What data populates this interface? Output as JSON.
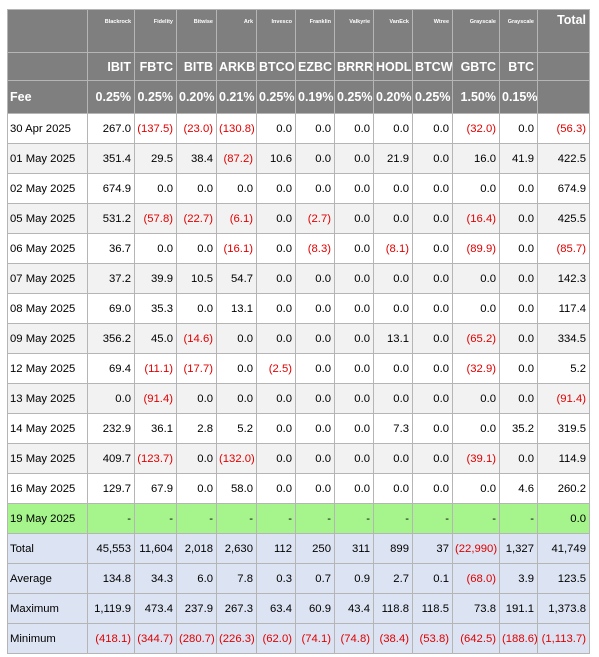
{
  "columns": [
    {
      "issuer": "Blackrock",
      "ticker": "IBIT",
      "fee": "0.25%"
    },
    {
      "issuer": "Fidelity",
      "ticker": "FBTC",
      "fee": "0.25%"
    },
    {
      "issuer": "Bitwise",
      "ticker": "BITB",
      "fee": "0.20%"
    },
    {
      "issuer": "Ark",
      "ticker": "ARKB",
      "fee": "0.21%"
    },
    {
      "issuer": "Invesco",
      "ticker": "BTCO",
      "fee": "0.25%"
    },
    {
      "issuer": "Franklin",
      "ticker": "EZBC",
      "fee": "0.19%"
    },
    {
      "issuer": "Valkyrie",
      "ticker": "BRRR",
      "fee": "0.25%"
    },
    {
      "issuer": "VanEck",
      "ticker": "HODL",
      "fee": "0.20%"
    },
    {
      "issuer": "Wtree",
      "ticker": "BTCW",
      "fee": "0.25%"
    },
    {
      "issuer": "Grayscale",
      "ticker": "GBTC",
      "fee": "1.50%"
    },
    {
      "issuer": "Grayscale",
      "ticker": "BTC",
      "fee": "0.15%"
    }
  ],
  "total_header": "Total",
  "fee_label": "Fee",
  "rows": [
    {
      "label": "30 Apr 2025",
      "values": [
        "267.0",
        "(137.5)",
        "(23.0)",
        "(130.8)",
        "0.0",
        "0.0",
        "0.0",
        "0.0",
        "0.0",
        "(32.0)",
        "0.0"
      ],
      "total": "(56.3)"
    },
    {
      "label": "01 May 2025",
      "values": [
        "351.4",
        "29.5",
        "38.4",
        "(87.2)",
        "10.6",
        "0.0",
        "0.0",
        "21.9",
        "0.0",
        "16.0",
        "41.9"
      ],
      "total": "422.5"
    },
    {
      "label": "02 May 2025",
      "values": [
        "674.9",
        "0.0",
        "0.0",
        "0.0",
        "0.0",
        "0.0",
        "0.0",
        "0.0",
        "0.0",
        "0.0",
        "0.0"
      ],
      "total": "674.9"
    },
    {
      "label": "05 May 2025",
      "values": [
        "531.2",
        "(57.8)",
        "(22.7)",
        "(6.1)",
        "0.0",
        "(2.7)",
        "0.0",
        "0.0",
        "0.0",
        "(16.4)",
        "0.0"
      ],
      "total": "425.5"
    },
    {
      "label": "06 May 2025",
      "values": [
        "36.7",
        "0.0",
        "0.0",
        "(16.1)",
        "0.0",
        "(8.3)",
        "0.0",
        "(8.1)",
        "0.0",
        "(89.9)",
        "0.0"
      ],
      "total": "(85.7)"
    },
    {
      "label": "07 May 2025",
      "values": [
        "37.2",
        "39.9",
        "10.5",
        "54.7",
        "0.0",
        "0.0",
        "0.0",
        "0.0",
        "0.0",
        "0.0",
        "0.0"
      ],
      "total": "142.3"
    },
    {
      "label": "08 May 2025",
      "values": [
        "69.0",
        "35.3",
        "0.0",
        "13.1",
        "0.0",
        "0.0",
        "0.0",
        "0.0",
        "0.0",
        "0.0",
        "0.0"
      ],
      "total": "117.4"
    },
    {
      "label": "09 May 2025",
      "values": [
        "356.2",
        "45.0",
        "(14.6)",
        "0.0",
        "0.0",
        "0.0",
        "0.0",
        "13.1",
        "0.0",
        "(65.2)",
        "0.0"
      ],
      "total": "334.5"
    },
    {
      "label": "12 May 2025",
      "values": [
        "69.4",
        "(11.1)",
        "(17.7)",
        "0.0",
        "(2.5)",
        "0.0",
        "0.0",
        "0.0",
        "0.0",
        "(32.9)",
        "0.0"
      ],
      "total": "5.2"
    },
    {
      "label": "13 May 2025",
      "values": [
        "0.0",
        "(91.4)",
        "0.0",
        "0.0",
        "0.0",
        "0.0",
        "0.0",
        "0.0",
        "0.0",
        "0.0",
        "0.0"
      ],
      "total": "(91.4)"
    },
    {
      "label": "14 May 2025",
      "values": [
        "232.9",
        "36.1",
        "2.8",
        "5.2",
        "0.0",
        "0.0",
        "0.0",
        "7.3",
        "0.0",
        "0.0",
        "35.2"
      ],
      "total": "319.5"
    },
    {
      "label": "15 May 2025",
      "values": [
        "409.7",
        "(123.7)",
        "0.0",
        "(132.0)",
        "0.0",
        "0.0",
        "0.0",
        "0.0",
        "0.0",
        "(39.1)",
        "0.0"
      ],
      "total": "114.9"
    },
    {
      "label": "16 May 2025",
      "values": [
        "129.7",
        "67.9",
        "0.0",
        "58.0",
        "0.0",
        "0.0",
        "0.0",
        "0.0",
        "0.0",
        "0.0",
        "4.6"
      ],
      "total": "260.2"
    },
    {
      "label": "19 May 2025",
      "values": [
        "-",
        "-",
        "-",
        "-",
        "-",
        "-",
        "-",
        "-",
        "-",
        "-",
        "-"
      ],
      "total": "0.0",
      "highlight": true
    }
  ],
  "summary": [
    {
      "label": "Total",
      "values": [
        "45,553",
        "11,604",
        "2,018",
        "2,630",
        "112",
        "250",
        "311",
        "899",
        "37",
        "(22,990)",
        "1,327"
      ],
      "total": "41,749"
    },
    {
      "label": "Average",
      "values": [
        "134.8",
        "34.3",
        "6.0",
        "7.8",
        "0.3",
        "0.7",
        "0.9",
        "2.7",
        "0.1",
        "(68.0)",
        "3.9"
      ],
      "total": "123.5"
    },
    {
      "label": "Maximum",
      "values": [
        "1,119.9",
        "473.4",
        "237.9",
        "267.3",
        "63.4",
        "60.9",
        "43.4",
        "118.8",
        "118.5",
        "73.8",
        "191.1"
      ],
      "total": "1,373.8"
    },
    {
      "label": "Minimum",
      "values": [
        "(418.1)",
        "(344.7)",
        "(280.7)",
        "(226.3)",
        "(62.0)",
        "(74.1)",
        "(74.8)",
        "(38.4)",
        "(53.8)",
        "(642.5)",
        "(188.6)"
      ],
      "total": "(1,113.7)"
    }
  ],
  "colors": {
    "header_bg": "#7f7f7f",
    "negative": "#e00000",
    "highlight": "#a6f58c",
    "summary_bg": "#dce3f2"
  }
}
